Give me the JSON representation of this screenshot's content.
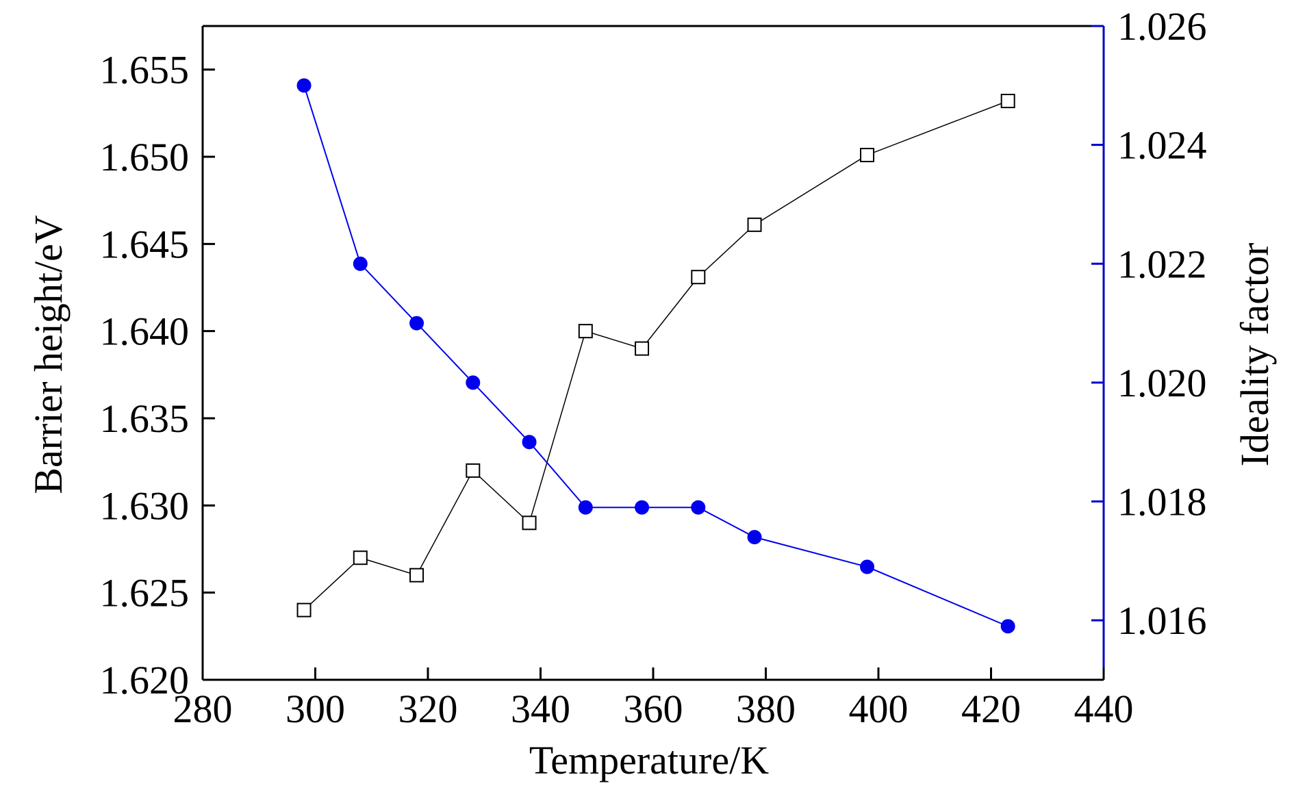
{
  "chart_data": {
    "type": "line",
    "title": "",
    "xlabel": "Temperature/K",
    "ylabel_left": "Barrier height/eV",
    "ylabel_right": "Ideality factor",
    "xlim": [
      280,
      440
    ],
    "ylim_left": [
      1.62,
      1.6575
    ],
    "ylim_right": [
      1.015,
      1.026
    ],
    "xticks": [
      "280",
      "300",
      "320",
      "340",
      "360",
      "380",
      "400",
      "420",
      "440"
    ],
    "yticks_left": [
      "1.620",
      "1.625",
      "1.630",
      "1.635",
      "1.640",
      "1.645",
      "1.650",
      "1.655"
    ],
    "yticks_right": [
      "1.016",
      "1.018",
      "1.020",
      "1.022",
      "1.024",
      "1.026"
    ],
    "grid": false,
    "legend": "none",
    "colors": {
      "barrier": "#000000",
      "ideality": "#0000ee",
      "right_axis": "#0000cc"
    },
    "series": [
      {
        "axis": "left",
        "marker": "open-square",
        "x": [
          298,
          308,
          318,
          328,
          338,
          348,
          358,
          368,
          378,
          398,
          423
        ],
        "values": [
          1.624,
          1.627,
          1.626,
          1.632,
          1.629,
          1.64,
          1.639,
          1.6431,
          1.6461,
          1.6501,
          1.6532
        ]
      },
      {
        "axis": "right",
        "marker": "filled-circle",
        "x": [
          298,
          308,
          318,
          328,
          338,
          348,
          358,
          368,
          378,
          398,
          423
        ],
        "values": [
          1.025,
          1.022,
          1.021,
          1.02,
          1.019,
          1.0179,
          1.0179,
          1.0179,
          1.0174,
          1.0169,
          1.0159
        ]
      }
    ]
  }
}
